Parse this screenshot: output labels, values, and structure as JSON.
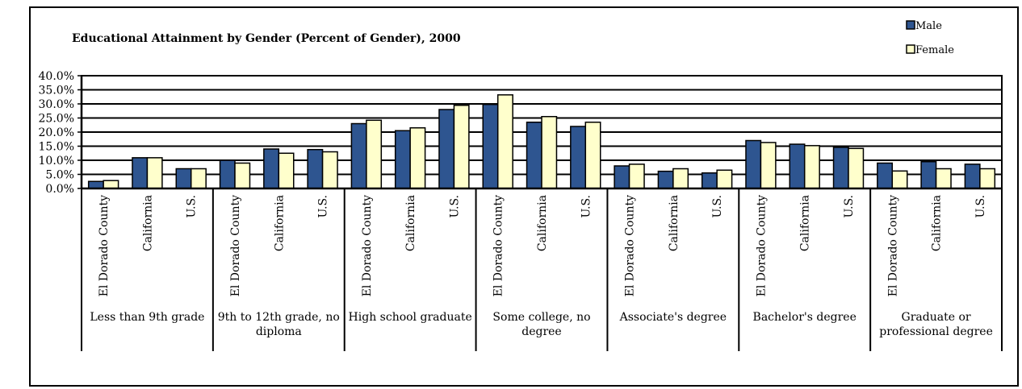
{
  "chart_data": {
    "type": "bar",
    "title": "Educational Attainment by Gender (Percent of Gender), 2000",
    "xlabel": "",
    "ylabel": "",
    "ylim": [
      0,
      40
    ],
    "y_ticks": [
      "0.0%",
      "5.0%",
      "10.0%",
      "15.0%",
      "20.0%",
      "25.0%",
      "30.0%",
      "35.0%",
      "40.0%"
    ],
    "grid": "horizontal",
    "legend_position": "top-right",
    "groups": [
      {
        "label": "Less than 9th grade",
        "categories": [
          "El Dorado County",
          "California",
          "U.S."
        ]
      },
      {
        "label": "9th to 12th grade, no diploma",
        "categories": [
          "El Dorado County",
          "California",
          "U.S."
        ]
      },
      {
        "label": "High school graduate",
        "categories": [
          "El Dorado County",
          "California",
          "U.S."
        ]
      },
      {
        "label": "Some college, no degree",
        "categories": [
          "El Dorado County",
          "California",
          "U.S."
        ]
      },
      {
        "label": "Associate's degree",
        "categories": [
          "El Dorado County",
          "California",
          "U.S."
        ]
      },
      {
        "label": "Bachelor's degree",
        "categories": [
          "El Dorado County",
          "California",
          "U.S."
        ]
      },
      {
        "label": "Graduate or professional degree",
        "categories": [
          "El Dorado County",
          "California",
          "U.S."
        ]
      }
    ],
    "series": [
      {
        "name": "Male",
        "color": "#2E5590",
        "values": [
          2.5,
          10.9,
          7.0,
          10.0,
          14.0,
          13.8,
          23.0,
          20.5,
          28.0,
          29.8,
          23.5,
          22.0,
          8.0,
          6.1,
          5.5,
          17.0,
          15.7,
          14.6,
          9.0,
          9.5,
          8.6
        ]
      },
      {
        "name": "Female",
        "color": "#FFFFCC",
        "values": [
          2.8,
          10.9,
          7.0,
          9.0,
          12.5,
          13.0,
          24.2,
          21.5,
          29.5,
          33.2,
          25.5,
          23.5,
          8.6,
          7.0,
          6.5,
          16.3,
          15.2,
          14.2,
          6.2,
          7.0,
          7.0
        ]
      }
    ]
  }
}
